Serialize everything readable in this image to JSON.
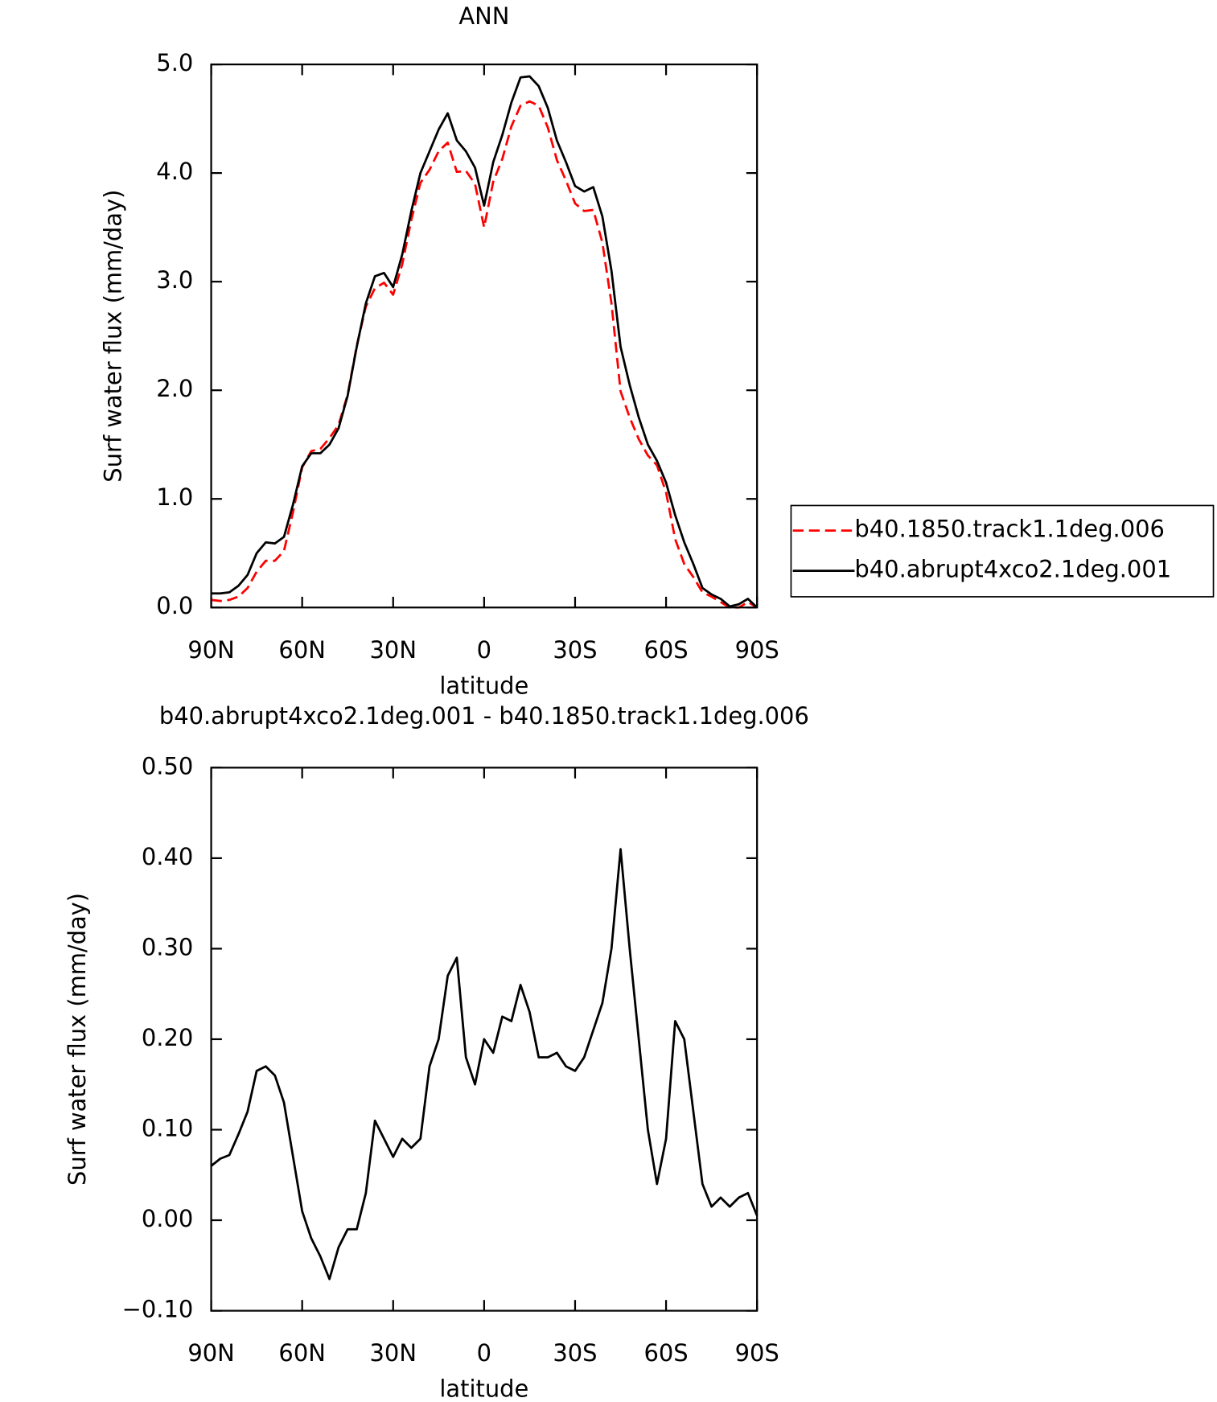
{
  "chart_data": [
    {
      "type": "line",
      "title": "ANN",
      "xlabel": "latitude",
      "ylabel": "Surf water flux (mm/day)",
      "xlim": [
        90,
        -90
      ],
      "xticks": [
        {
          "value": 90,
          "label": "90N"
        },
        {
          "value": 60,
          "label": "60N"
        },
        {
          "value": 30,
          "label": "30N"
        },
        0,
        {
          "value": -30,
          "label": "30S"
        },
        {
          "value": -60,
          "label": "60S"
        },
        {
          "value": -90,
          "label": "90S"
        }
      ],
      "ylim": [
        0,
        5
      ],
      "yticks": [
        {
          "value": 0,
          "label": "0.0"
        },
        {
          "value": 1,
          "label": "1.0"
        },
        {
          "value": 2,
          "label": "2.0"
        },
        {
          "value": 3,
          "label": "3.0"
        },
        {
          "value": 4,
          "label": "4.0"
        },
        {
          "value": 5,
          "label": "5.0"
        }
      ],
      "legend": "right",
      "x": [
        90,
        87,
        84,
        81,
        78,
        75,
        72,
        69,
        66,
        63,
        60,
        57,
        54,
        51,
        48,
        45,
        42,
        39,
        36,
        33,
        30,
        27,
        24,
        21,
        18,
        15,
        12,
        9,
        6,
        3,
        0,
        -3,
        -6,
        -9,
        -12,
        -15,
        -18,
        -21,
        -24,
        -27,
        -30,
        -33,
        -36,
        -39,
        -42,
        -45,
        -48,
        -51,
        -54,
        -57,
        -60,
        -63,
        -66,
        -69,
        -72,
        -75,
        -78,
        -81,
        -84,
        -87,
        -90
      ],
      "series": [
        {
          "name": "b40.1850.track1.1deg.006",
          "color": "#ff0000",
          "dash": true,
          "values": [
            0.07,
            0.06,
            0.07,
            0.1,
            0.18,
            0.33,
            0.43,
            0.43,
            0.52,
            0.88,
            1.29,
            1.44,
            1.46,
            1.56,
            1.68,
            1.96,
            2.41,
            2.77,
            2.94,
            2.99,
            2.88,
            3.16,
            3.57,
            3.91,
            4.03,
            4.2,
            4.28,
            4.01,
            4.02,
            3.9,
            3.5,
            3.92,
            4.13,
            4.43,
            4.62,
            4.66,
            4.62,
            4.42,
            4.12,
            3.93,
            3.72,
            3.65,
            3.66,
            3.36,
            2.8,
            1.99,
            1.75,
            1.55,
            1.4,
            1.31,
            1.06,
            0.63,
            0.4,
            0.28,
            0.14,
            0.1,
            0.05,
            0.0,
            0.0,
            0.05,
            0.0
          ]
        },
        {
          "name": "b40.abrupt4xco2.1deg.001",
          "color": "#000000",
          "dash": false,
          "values": [
            0.13,
            0.13,
            0.14,
            0.2,
            0.3,
            0.5,
            0.6,
            0.59,
            0.65,
            0.95,
            1.3,
            1.42,
            1.42,
            1.5,
            1.65,
            1.95,
            2.4,
            2.8,
            3.05,
            3.08,
            2.95,
            3.25,
            3.65,
            4.0,
            4.2,
            4.4,
            4.55,
            4.3,
            4.2,
            4.05,
            3.7,
            4.1,
            4.35,
            4.65,
            4.88,
            4.89,
            4.8,
            4.6,
            4.3,
            4.1,
            3.88,
            3.83,
            3.87,
            3.6,
            3.1,
            2.4,
            2.05,
            1.75,
            1.5,
            1.35,
            1.15,
            0.85,
            0.6,
            0.4,
            0.18,
            0.12,
            0.08,
            0.01,
            0.03,
            0.08,
            0.0
          ]
        }
      ]
    },
    {
      "type": "line",
      "title": "b40.abrupt4xco2.1deg.001 - b40.1850.track1.1deg.006",
      "xlabel": "latitude",
      "ylabel": "Surf water flux (mm/day)",
      "xlim": [
        90,
        -90
      ],
      "xticks": [
        {
          "value": 90,
          "label": "90N"
        },
        {
          "value": 60,
          "label": "60N"
        },
        {
          "value": 30,
          "label": "30N"
        },
        0,
        {
          "value": -30,
          "label": "30S"
        },
        {
          "value": -60,
          "label": "60S"
        },
        {
          "value": -90,
          "label": "90S"
        }
      ],
      "ylim": [
        -0.1,
        0.5
      ],
      "yticks": [
        {
          "value": -0.1,
          "label": "−0.10"
        },
        {
          "value": 0,
          "label": "0.00"
        },
        {
          "value": 0.1,
          "label": "0.10"
        },
        {
          "value": 0.2,
          "label": "0.20"
        },
        {
          "value": 0.3,
          "label": "0.30"
        },
        {
          "value": 0.4,
          "label": "0.40"
        },
        {
          "value": 0.5,
          "label": "0.50"
        }
      ],
      "x": [
        90,
        87,
        84,
        81,
        78,
        75,
        72,
        69,
        66,
        63,
        60,
        57,
        54,
        51,
        48,
        45,
        42,
        39,
        36,
        33,
        30,
        27,
        24,
        21,
        18,
        15,
        12,
        9,
        6,
        3,
        0,
        -3,
        -6,
        -9,
        -12,
        -15,
        -18,
        -21,
        -24,
        -27,
        -30,
        -33,
        -36,
        -39,
        -42,
        -45,
        -48,
        -51,
        -54,
        -57,
        -60,
        -63,
        -66,
        -69,
        -72,
        -75,
        -78,
        -81,
        -84,
        -87,
        -90
      ],
      "series": [
        {
          "color": "#000000",
          "dash": false,
          "values": [
            0.06,
            0.068,
            0.072,
            0.095,
            0.12,
            0.165,
            0.17,
            0.16,
            0.13,
            0.07,
            0.01,
            -0.02,
            -0.04,
            -0.065,
            -0.03,
            -0.01,
            -0.01,
            0.03,
            0.11,
            0.09,
            0.07,
            0.09,
            0.08,
            0.09,
            0.17,
            0.2,
            0.27,
            0.29,
            0.18,
            0.15,
            0.2,
            0.185,
            0.225,
            0.22,
            0.26,
            0.23,
            0.18,
            0.18,
            0.185,
            0.17,
            0.165,
            0.18,
            0.21,
            0.24,
            0.3,
            0.41,
            0.3,
            0.2,
            0.1,
            0.04,
            0.09,
            0.22,
            0.2,
            0.12,
            0.04,
            0.015,
            0.025,
            0.015,
            0.025,
            0.03,
            0.005
          ]
        }
      ]
    }
  ]
}
